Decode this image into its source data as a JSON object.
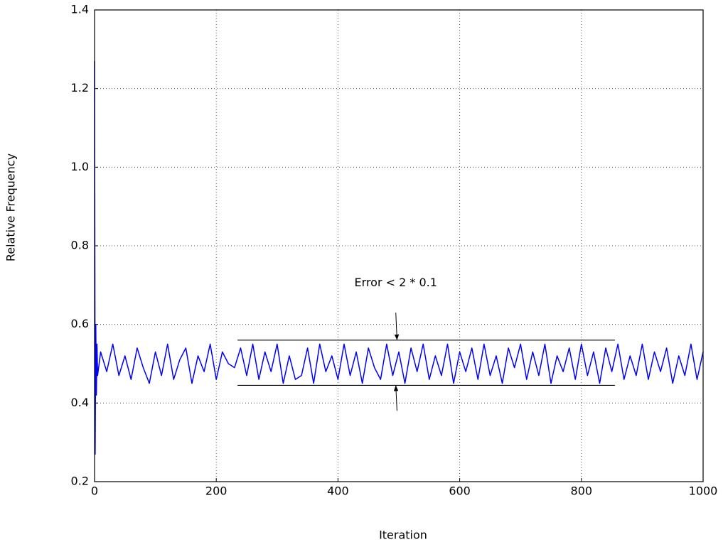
{
  "chart_data": {
    "type": "line",
    "xlabel": "Iteration",
    "ylabel": "Relative Frequency",
    "xlim": [
      0,
      1000
    ],
    "ylim": [
      0.2,
      1.4
    ],
    "xticks": [
      0,
      200,
      400,
      600,
      800,
      1000
    ],
    "yticks": [
      0.2,
      0.4,
      0.6,
      0.8,
      {
        "value": 1,
        "label": "1.0"
      },
      1.2,
      1.4
    ],
    "grid": true,
    "series": [
      {
        "color": "#0000ff",
        "x": [
          0,
          1,
          2,
          3,
          4,
          5,
          10,
          20,
          30,
          40,
          50,
          60,
          70,
          80,
          90,
          100,
          110,
          120,
          130,
          140,
          150,
          160,
          170,
          180,
          190,
          200,
          210,
          220,
          230,
          240,
          250,
          260,
          270,
          280,
          290,
          300,
          310,
          320,
          330,
          340,
          350,
          360,
          370,
          380,
          390,
          400,
          410,
          420,
          430,
          440,
          450,
          460,
          470,
          480,
          490,
          500,
          510,
          520,
          530,
          540,
          550,
          560,
          570,
          580,
          590,
          600,
          610,
          620,
          630,
          640,
          650,
          660,
          670,
          680,
          690,
          700,
          710,
          720,
          730,
          740,
          750,
          760,
          770,
          780,
          790,
          800,
          810,
          820,
          830,
          840,
          850,
          860,
          870,
          880,
          890,
          900,
          910,
          920,
          930,
          940,
          950,
          960,
          970,
          980,
          990,
          1000
        ],
        "values": [
          1.27,
          0.27,
          0.6,
          0.42,
          0.55,
          0.47,
          0.53,
          0.48,
          0.55,
          0.47,
          0.52,
          0.46,
          0.54,
          0.49,
          0.45,
          0.53,
          0.47,
          0.55,
          0.46,
          0.51,
          0.54,
          0.45,
          0.52,
          0.48,
          0.55,
          0.46,
          0.53,
          0.5,
          0.49,
          0.54,
          0.47,
          0.55,
          0.46,
          0.53,
          0.48,
          0.55,
          0.45,
          0.52,
          0.46,
          0.47,
          0.54,
          0.45,
          0.55,
          0.48,
          0.52,
          0.46,
          0.55,
          0.47,
          0.53,
          0.45,
          0.54,
          0.49,
          0.46,
          0.55,
          0.47,
          0.53,
          0.45,
          0.54,
          0.48,
          0.55,
          0.46,
          0.52,
          0.47,
          0.55,
          0.45,
          0.53,
          0.48,
          0.54,
          0.46,
          0.55,
          0.47,
          0.52,
          0.45,
          0.54,
          0.49,
          0.55,
          0.46,
          0.53,
          0.47,
          0.55,
          0.45,
          0.52,
          0.48,
          0.54,
          0.46,
          0.55,
          0.47,
          0.53,
          0.45,
          0.54,
          0.48,
          0.55,
          0.46,
          0.52,
          0.47,
          0.55,
          0.46,
          0.53,
          0.48,
          0.54,
          0.45,
          0.52,
          0.47,
          0.55,
          0.46,
          0.53
        ]
      }
    ],
    "hlines": [
      {
        "y": 0.56,
        "xmin": 235,
        "xmax": 855
      },
      {
        "y": 0.445,
        "xmin": 235,
        "xmax": 855
      }
    ],
    "arrows": [
      {
        "x": 495,
        "y": 0.63,
        "x2": 497,
        "y2": 0.56
      },
      {
        "x": 497,
        "y": 0.38,
        "x2": 495,
        "y2": 0.445
      }
    ],
    "annotations": [
      {
        "text": "Error < 2 * 0.1",
        "x": 495,
        "y": 0.705
      }
    ]
  }
}
